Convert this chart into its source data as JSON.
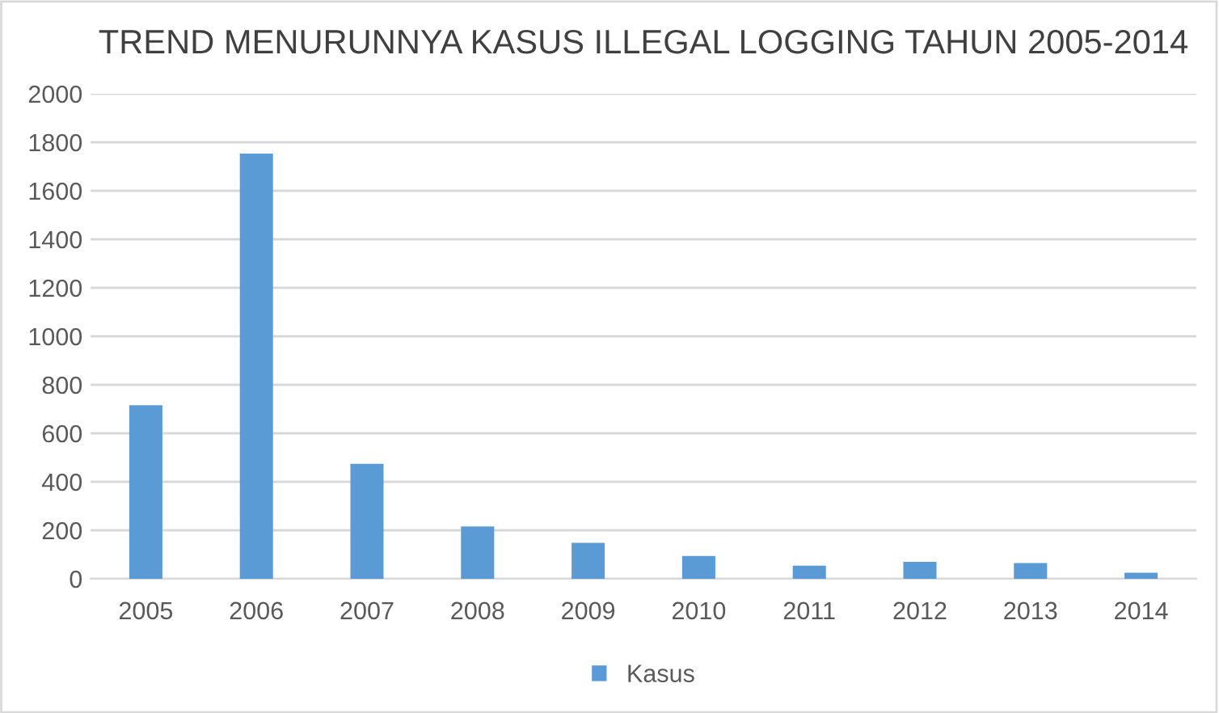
{
  "chart_data": {
    "type": "bar",
    "title": "TREND MENURUNNYA KASUS ILLEGAL LOGGING TAHUN 2005-2014",
    "categories": [
      "2005",
      "2006",
      "2007",
      "2008",
      "2009",
      "2010",
      "2011",
      "2012",
      "2013",
      "2014"
    ],
    "series": [
      {
        "name": "Kasus",
        "color": "#5b9bd5",
        "values": [
          716,
          1753,
          474,
          216,
          148,
          94,
          54,
          70,
          65,
          25
        ]
      }
    ],
    "ylim": [
      0,
      2000
    ],
    "yticks": [
      0,
      200,
      400,
      600,
      800,
      1000,
      1200,
      1400,
      1600,
      1800,
      2000
    ],
    "grid": "y",
    "legend": "bottom"
  }
}
